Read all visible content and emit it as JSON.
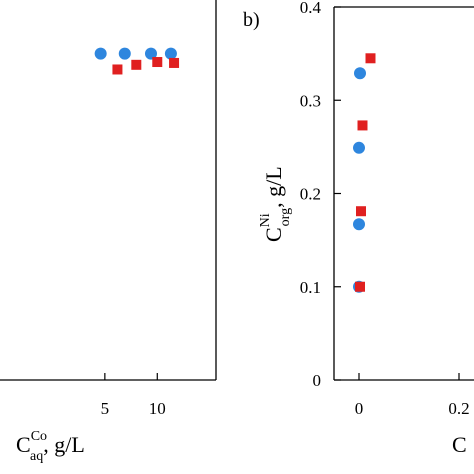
{
  "chart_data": [
    {
      "type": "scatter",
      "panel_label": "",
      "xlabel": {
        "main": "C",
        "sup": "Co",
        "sub": "aq",
        "unit": ", g/L"
      },
      "ylabel": "",
      "x_ticks": [
        {
          "value": 5,
          "label": "5"
        },
        {
          "value": 10,
          "label": "10"
        }
      ],
      "y_ticks": [],
      "xlim": [
        -5,
        15.6
      ],
      "ylim": [
        0,
        0.4
      ],
      "series": [
        {
          "marker": "circle",
          "color": "#2e86de",
          "points": [
            [
              4.6,
              0.35
            ],
            [
              6.9,
              0.35
            ],
            [
              9.4,
              0.35
            ],
            [
              11.3,
              0.35
            ]
          ]
        },
        {
          "marker": "square",
          "color": "#e02020",
          "points": [
            [
              6.2,
              0.333
            ],
            [
              8.0,
              0.338
            ],
            [
              10.0,
              0.341
            ],
            [
              11.6,
              0.34
            ]
          ]
        }
      ]
    },
    {
      "type": "scatter",
      "panel_label": "b)",
      "xlabel": {
        "main": "C",
        "sup": "",
        "sub": "",
        "unit": ""
      },
      "ylabel": {
        "main": "C",
        "sup": "Ni",
        "sub": "org",
        "unit": ", g/L"
      },
      "x_ticks": [
        {
          "value": 0,
          "label": "0"
        },
        {
          "value": 0.2,
          "label": "0.2"
        }
      ],
      "y_ticks": [
        {
          "value": 0,
          "label": "0"
        },
        {
          "value": 0.1,
          "label": "0.1"
        },
        {
          "value": 0.2,
          "label": "0.2"
        },
        {
          "value": 0.3,
          "label": "0.3"
        },
        {
          "value": 0.4,
          "label": "0.4"
        }
      ],
      "xlim": [
        -0.05,
        0.23
      ],
      "ylim": [
        0,
        0.4
      ],
      "series": [
        {
          "marker": "circle",
          "color": "#2e86de",
          "points": [
            [
              0.0,
              0.1
            ],
            [
              0.0,
              0.167
            ],
            [
              0.0,
              0.249
            ],
            [
              0.002,
              0.329
            ]
          ]
        },
        {
          "marker": "square",
          "color": "#e02020",
          "points": [
            [
              0.002,
              0.1
            ],
            [
              0.004,
              0.181
            ],
            [
              0.007,
              0.273
            ],
            [
              0.023,
              0.345
            ]
          ]
        }
      ]
    }
  ]
}
